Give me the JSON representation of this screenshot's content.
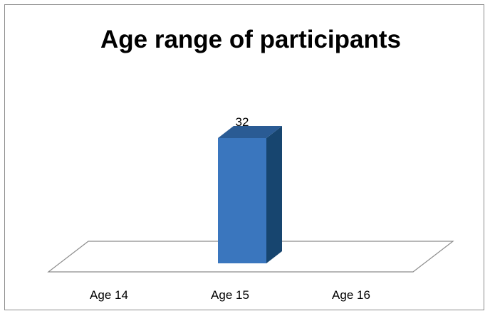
{
  "chart_data": {
    "type": "bar",
    "title": "Age range of participants",
    "categories": [
      "Age 14",
      "Age 15",
      "Age 16"
    ],
    "values": [
      0,
      32,
      0
    ],
    "data_labels": [
      "",
      "32",
      ""
    ],
    "xlabel": "",
    "ylabel": "",
    "style": "3d-column",
    "grid": false,
    "legend": "none",
    "colors": {
      "bar_front": "#3a76be",
      "bar_side": "#17456f",
      "bar_top": "#2a5b94",
      "floor_stroke": "#8c8c8c"
    }
  }
}
